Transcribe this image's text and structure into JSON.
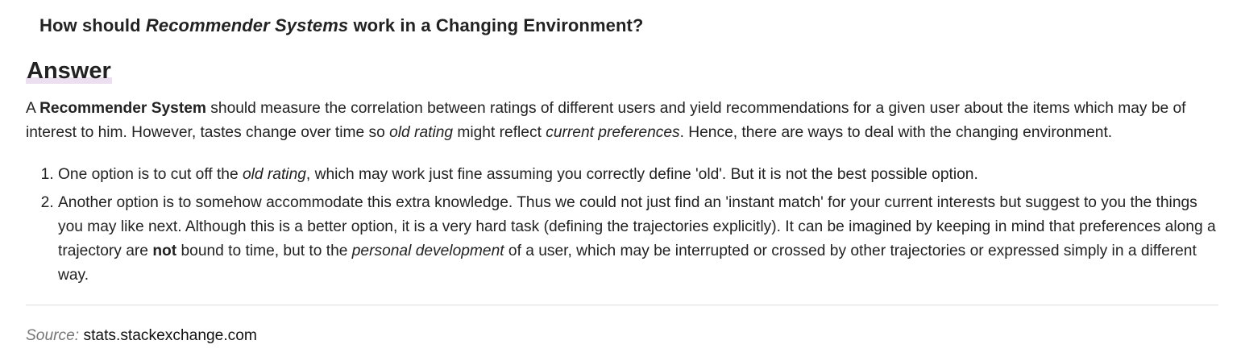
{
  "question": {
    "prefix": "How should ",
    "emphasis": "Recommender Systems",
    "suffix": " work in a Changing Environment?"
  },
  "answer": {
    "heading": "Answer",
    "intro": {
      "part1": "A ",
      "bold1": "Recommender System",
      "part2": " should measure the correlation between ratings of different users and yield recommendations for a given user about the items which may be of interest to him. However, tastes change over time so ",
      "italic1": "old rating",
      "part3": " might reflect ",
      "italic2": "current preferences",
      "part4": ". Hence, there are ways to deal with the changing environment."
    },
    "options": [
      {
        "part1": "One option is to cut off the ",
        "italic1": "old rating",
        "part2": ", which may work just fine assuming you correctly define 'old'. But it is not the best possible option."
      },
      {
        "part1": "Another option is to somehow accommodate this extra knowledge. Thus we could not just find an 'instant match' for your current interests but suggest to you the things you may like next. Although this is a better option, it is a very hard task (defining the trajectories explicitly). It can be imagined by keeping in mind that preferences along a trajectory are ",
        "bold1": "not",
        "part2": " bound to time, but to the ",
        "italic1": "personal development",
        "part3": " of a user, which may be interrupted or crossed by other trajectories or expressed simply in a different way."
      }
    ]
  },
  "source": {
    "label": "Source:",
    "value": "stats.stackexchange.com"
  },
  "colors": {
    "text": "#222222",
    "heading_highlight": "#ecdff0",
    "source_label": "#777777",
    "divider": "#dddddd"
  }
}
